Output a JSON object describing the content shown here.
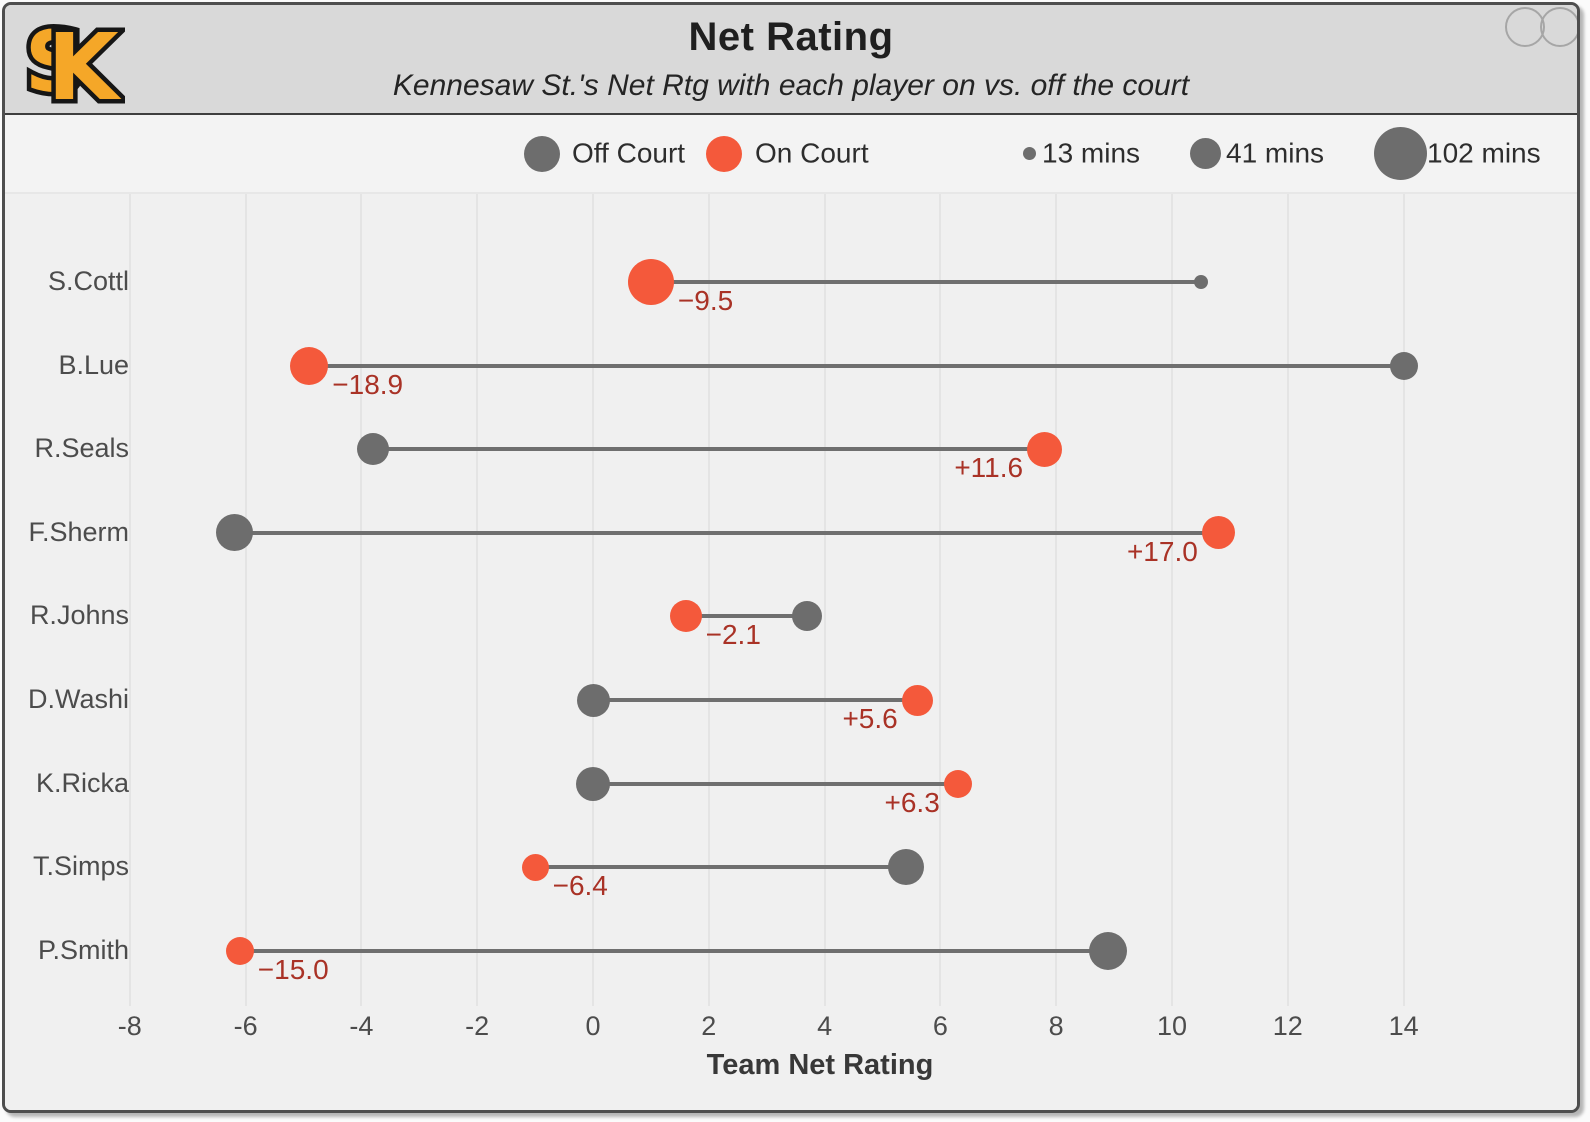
{
  "header": {
    "title": "Net Rating",
    "subtitle": "Kennesaw St.'s Net Rtg with each player on vs. off the court",
    "logo_letters": {
      "first": "S",
      "second": "K"
    }
  },
  "legend": {
    "off_label": "Off Court",
    "on_label": "On Court",
    "size_items": [
      {
        "label": "13 mins",
        "diameter": 13
      },
      {
        "label": "41 mins",
        "diameter": 31
      },
      {
        "label": "102 mins",
        "diameter": 53
      }
    ]
  },
  "colors": {
    "on_court": "#f4593b",
    "off_court": "#6d6d6d",
    "diff_text": "#a93226",
    "connector": "#6f6f6f",
    "header_bg": "#d9d9d9",
    "plot_bg": "#f0f0f0",
    "logo_gold": "#f5a728"
  },
  "chart_data": {
    "type": "dumbbell",
    "title": "Net Rating",
    "subtitle": "Kennesaw St.'s Net Rtg with each player on vs. off the court",
    "xlabel": "Team Net Rating",
    "xlim": [
      -8,
      14
    ],
    "x_ticks": [
      -8,
      -6,
      -4,
      -2,
      0,
      2,
      4,
      6,
      8,
      10,
      12,
      14
    ],
    "grid": true,
    "series_legend": [
      "Off Court",
      "On Court"
    ],
    "size_encodes": "minutes played",
    "players": [
      {
        "name": "S.Cottl",
        "on": 1.0,
        "off": 10.5,
        "diff_label": "−9.5",
        "on_size": 46,
        "off_size": 14
      },
      {
        "name": "B.Lue",
        "on": -4.9,
        "off": 14.0,
        "diff_label": "−18.9",
        "on_size": 38,
        "off_size": 28
      },
      {
        "name": "R.Seals",
        "on": 7.8,
        "off": -3.8,
        "diff_label": "+11.6",
        "on_size": 35,
        "off_size": 32
      },
      {
        "name": "F.Sherm",
        "on": 10.8,
        "off": -6.2,
        "diff_label": "+17.0",
        "on_size": 33,
        "off_size": 37
      },
      {
        "name": "R.Johns",
        "on": 1.6,
        "off": 3.7,
        "diff_label": "−2.1",
        "on_size": 32,
        "off_size": 30
      },
      {
        "name": "D.Washi",
        "on": 5.6,
        "off": 0.0,
        "diff_label": "+5.6",
        "on_size": 31,
        "off_size": 33
      },
      {
        "name": "K.Ricka",
        "on": 6.3,
        "off": 0.0,
        "diff_label": "+6.3",
        "on_size": 28,
        "off_size": 34
      },
      {
        "name": "T.Simps",
        "on": -1.0,
        "off": 5.4,
        "diff_label": "−6.4",
        "on_size": 27,
        "off_size": 36
      },
      {
        "name": "P.Smith",
        "on": -6.1,
        "off": 8.9,
        "diff_label": "−15.0",
        "on_size": 28,
        "off_size": 38
      }
    ]
  }
}
